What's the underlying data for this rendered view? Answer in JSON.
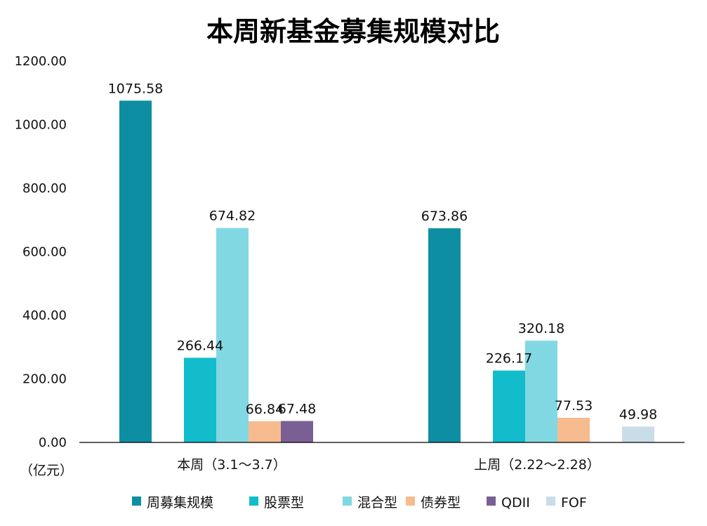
{
  "chart_data": {
    "type": "bar",
    "title": "本周新基金募集规模对比",
    "unit_label": "（亿元）",
    "ylim": [
      0,
      1200
    ],
    "y_ticks": [
      "0.00",
      "200.00",
      "400.00",
      "600.00",
      "800.00",
      "1000.00",
      "1200.00"
    ],
    "categories": [
      "本周（3.1～3.7）",
      "上周（2.22～2.28）"
    ],
    "legend_position": "bottom",
    "grid": false,
    "series": [
      {
        "name": "周募集规模",
        "color": "#0d8ea2",
        "values": [
          1075.58,
          673.86
        ],
        "labels": [
          "1075.58",
          "673.86"
        ]
      },
      {
        "name": "股票型",
        "color": "#12bccb",
        "values": [
          266.44,
          226.17
        ],
        "labels": [
          "266.44",
          "226.17"
        ]
      },
      {
        "name": "混合型",
        "color": "#82d8e2",
        "values": [
          674.82,
          320.18
        ],
        "labels": [
          "674.82",
          "320.18"
        ]
      },
      {
        "name": "债券型",
        "color": "#f6bb8f",
        "values": [
          66.84,
          77.53
        ],
        "labels": [
          "66.84",
          "77.53"
        ]
      },
      {
        "name": "QDII",
        "color": "#7a5f95",
        "values": [
          67.48,
          null
        ],
        "labels": [
          "67.48",
          null
        ]
      },
      {
        "name": "FOF",
        "color": "#c9dde8",
        "values": [
          null,
          49.98
        ],
        "labels": [
          null,
          "49.98"
        ]
      }
    ]
  }
}
